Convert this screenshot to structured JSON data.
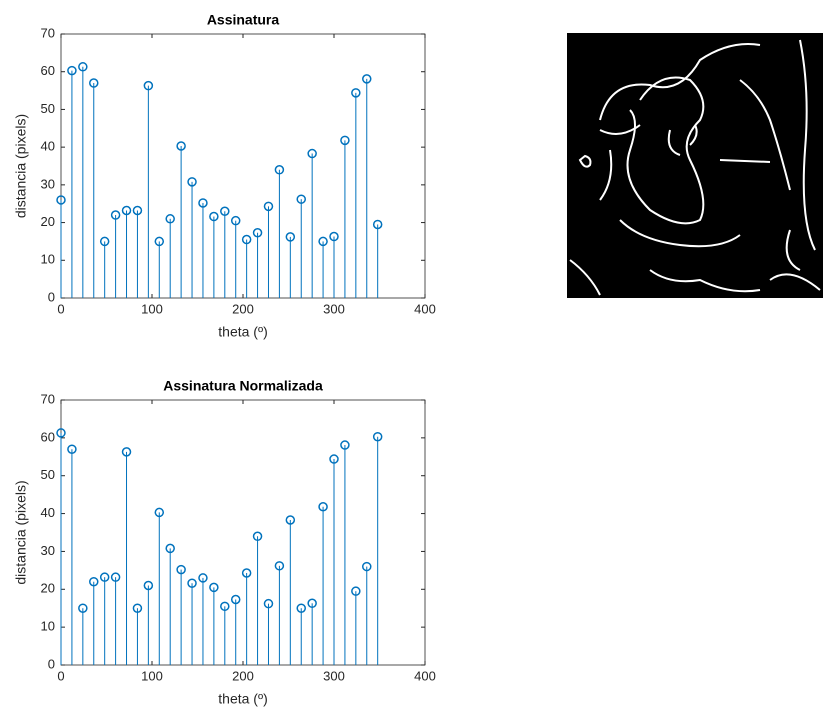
{
  "chart_data": [
    {
      "type": "stem",
      "title": "Assinatura",
      "xlabel": "theta (º)",
      "ylabel": "distancia (pixels)",
      "x": [
        0,
        12,
        24,
        36,
        48,
        60,
        72,
        84,
        96,
        108,
        120,
        132,
        144,
        156,
        168,
        180,
        192,
        204,
        216,
        228,
        240,
        252,
        264,
        276,
        288,
        300,
        312,
        324,
        336,
        348
      ],
      "series": [
        {
          "color": "#0072bd",
          "values": [
            26,
            60.3,
            61.3,
            57,
            15,
            22,
            23.2,
            23.2,
            56.3,
            15,
            21,
            40.3,
            30.8,
            25.2,
            21.6,
            23,
            20.5,
            15.5,
            17.3,
            24.3,
            34,
            16.2,
            26.2,
            38.3,
            15,
            16.3,
            41.8,
            54.4,
            58.1,
            19.5
          ]
        }
      ],
      "xlim": [
        0,
        400
      ],
      "xticks": [
        0,
        100,
        200,
        300,
        400
      ],
      "ylim": [
        0,
        70
      ],
      "yticks": [
        0,
        10,
        20,
        30,
        40,
        50,
        60,
        70
      ]
    },
    {
      "type": "stem",
      "title": "Assinatura Normalizada",
      "xlabel": "theta (º)",
      "ylabel": "distancia (pixels)",
      "x": [
        0,
        12,
        24,
        36,
        48,
        60,
        72,
        84,
        96,
        108,
        120,
        132,
        144,
        156,
        168,
        180,
        192,
        204,
        216,
        228,
        240,
        252,
        264,
        276,
        288,
        300,
        312,
        324,
        336,
        348
      ],
      "series": [
        {
          "color": "#0072bd",
          "values": [
            61.3,
            57,
            15,
            22,
            23.2,
            23.2,
            56.3,
            15,
            21,
            40.3,
            30.8,
            25.2,
            21.6,
            23,
            20.5,
            15.5,
            17.3,
            24.3,
            34,
            16.2,
            26.2,
            38.3,
            15,
            16.3,
            41.8,
            54.4,
            58.1,
            19.5,
            26,
            60.3
          ]
        }
      ],
      "xlim": [
        0,
        400
      ],
      "xticks": [
        0,
        100,
        200,
        300,
        400
      ],
      "ylim": [
        0,
        70
      ],
      "yticks": [
        0,
        10,
        20,
        30,
        40,
        50,
        60,
        70
      ]
    }
  ]
}
